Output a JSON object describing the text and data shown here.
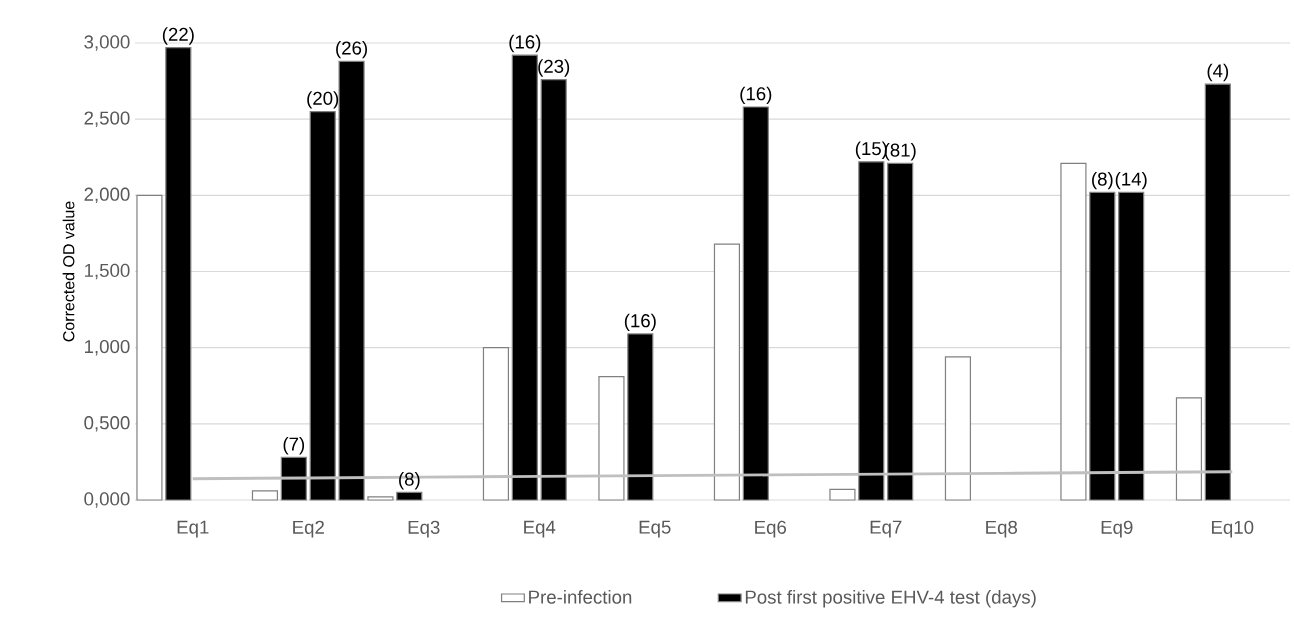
{
  "chart_data": {
    "type": "bar",
    "ylabel": "Corrected OD value",
    "categories": [
      "Eq1",
      "Eq2",
      "Eq3",
      "Eq4",
      "Eq5",
      "Eq6",
      "Eq7",
      "Eq8",
      "Eq9",
      "Eq10"
    ],
    "ylim": [
      0,
      3
    ],
    "yticks": [
      {
        "value": 0,
        "label": "0,000"
      },
      {
        "value": 0.5,
        "label": "0,500"
      },
      {
        "value": 1,
        "label": "1,000"
      },
      {
        "value": 1.5,
        "label": "1,500"
      },
      {
        "value": 2,
        "label": "2,000"
      },
      {
        "value": 2.5,
        "label": "2,500"
      },
      {
        "value": 3,
        "label": "3,000"
      }
    ],
    "grid": "y",
    "legend": "bottom",
    "series": [
      {
        "name": "Pre-infection",
        "color": "#ffffff",
        "values": [
          2.0,
          0.06,
          0.02,
          1.0,
          0.81,
          1.68,
          0.07,
          0.94,
          2.21,
          0.67
        ]
      },
      {
        "name": "Post first positive EHV-4 test (days)",
        "color": "#000000",
        "values": [
          2.97,
          0.28,
          0.05,
          2.92,
          1.09,
          2.58,
          2.22,
          null,
          2.02,
          2.73
        ]
      },
      {
        "color": "#000000",
        "values": [
          null,
          2.55,
          null,
          2.76,
          null,
          null,
          2.21,
          null,
          2.02,
          null
        ]
      },
      {
        "color": "#000000",
        "values": [
          null,
          2.88,
          null,
          null,
          null,
          null,
          null,
          null,
          null,
          null
        ]
      },
      {
        "type": "line",
        "color": "#bfbfbf",
        "values": [
          0.14,
          0.145,
          0.15,
          0.155,
          0.16,
          0.165,
          0.17,
          0.175,
          0.18,
          0.185
        ]
      }
    ],
    "annotations": [
      {
        "text": "(22)",
        "y": 2.97
      },
      {
        "text": "(7)",
        "y": 0.28
      },
      {
        "text": "(20)",
        "y": 2.55
      },
      {
        "text": "(26)",
        "y": 2.88
      },
      {
        "text": "(8)",
        "y": 0.05
      },
      {
        "text": "(16)",
        "y": 2.92
      },
      {
        "text": "(23)",
        "y": 2.76
      },
      {
        "text": "(16)",
        "y": 1.09
      },
      {
        "text": "(16)",
        "y": 2.58
      },
      {
        "text": "(15)",
        "y": 2.22
      },
      {
        "text": "(81)",
        "y": 2.21
      },
      {
        "text": "(8)",
        "y": 2.02
      },
      {
        "text": "(14)",
        "y": 2.02
      },
      {
        "text": "(4)",
        "y": 2.73
      }
    ]
  }
}
